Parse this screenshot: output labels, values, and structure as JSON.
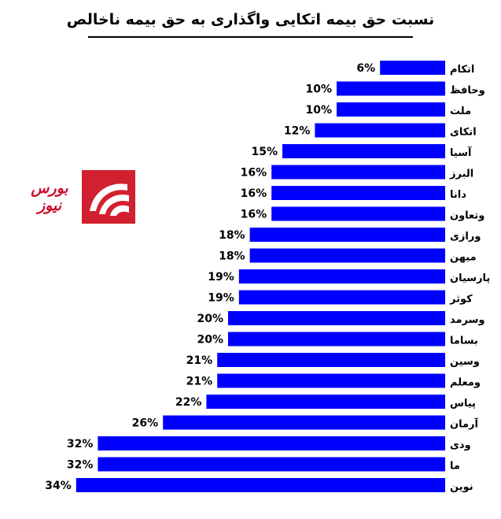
{
  "title": "نسبت حق بیمه اتکایی واگذاری به حق بیمه ناخالص",
  "watermark": {
    "text": "بورس نیوز",
    "color": "#c8102e"
  },
  "colors": {
    "bar": "#0000ff",
    "text": "#000000"
  },
  "chart_data": {
    "type": "bar",
    "orientation": "horizontal",
    "title": "نسبت حق بیمه اتکایی واگذاری به حق بیمه ناخالص",
    "categories": [
      "اتکام",
      "وحافظ",
      "ملت",
      "اتکای",
      "آسیا",
      "البرز",
      "دانا",
      "وتعاون",
      "ورازی",
      "میهن",
      "پارسیان",
      "کوثر",
      "وسرمد",
      "بساما",
      "وسین",
      "ومعلم",
      "پیاس",
      "آرمان",
      "ودی",
      "ما",
      "نوین"
    ],
    "values": [
      6,
      10,
      10,
      12,
      15,
      16,
      16,
      16,
      18,
      18,
      19,
      19,
      20,
      20,
      21,
      21,
      22,
      26,
      32,
      32,
      34
    ],
    "labels": [
      "6%",
      "10%",
      "10%",
      "12%",
      "15%",
      "16%",
      "16%",
      "16%",
      "18%",
      "18%",
      "19%",
      "19%",
      "20%",
      "20%",
      "21%",
      "21%",
      "22%",
      "26%",
      "32%",
      "32%",
      "34%"
    ],
    "unit": "%",
    "grid": false,
    "legend": false,
    "axes_visible": false
  }
}
